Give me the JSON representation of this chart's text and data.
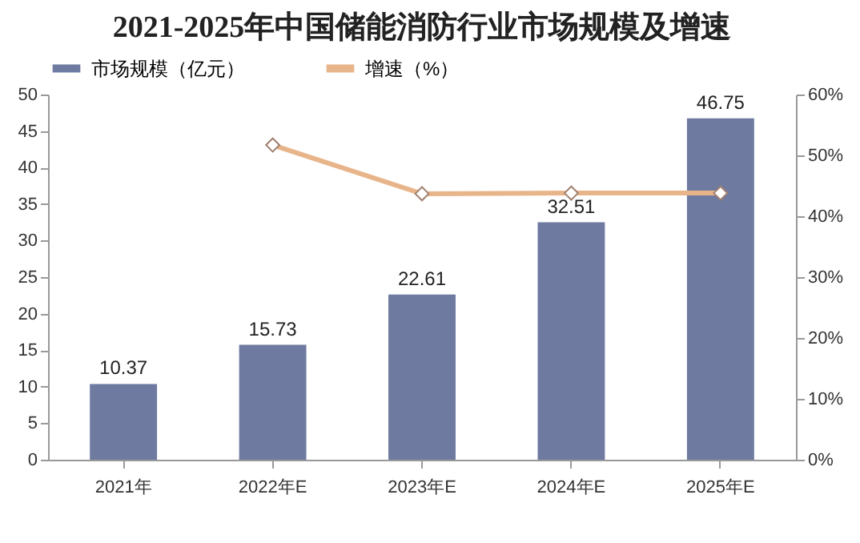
{
  "chart_data": {
    "type": "bar",
    "title": "2021-2025年中国储能消防行业市场规模及增速",
    "categories": [
      "2021年",
      "2022年E",
      "2023年E",
      "2024年E",
      "2025年E"
    ],
    "series": [
      {
        "name": "市场规模（亿元）",
        "color": "#6e7aa0",
        "values": [
          10.37,
          15.73,
          22.61,
          32.51,
          46.75
        ],
        "value_labels": [
          "10.37",
          "15.73",
          "22.61",
          "32.51",
          "46.75"
        ]
      },
      {
        "name": "增速（%）",
        "type": "line",
        "axis": "y2",
        "color": "#e8b48a",
        "marker": "diamond",
        "values": [
          null,
          51.7,
          43.7,
          43.8,
          43.8
        ]
      }
    ],
    "ylim": [
      0,
      50
    ],
    "yticks": [
      0,
      5,
      10,
      15,
      20,
      25,
      30,
      35,
      40,
      45,
      50
    ],
    "y2lim": [
      0,
      60
    ],
    "y2ticks": [
      {
        "value": 0,
        "label": "0%"
      },
      {
        "value": 10,
        "label": "10%"
      },
      {
        "value": 20,
        "label": "20%"
      },
      {
        "value": 30,
        "label": "30%"
      },
      {
        "value": 40,
        "label": "40%"
      },
      {
        "value": 50,
        "label": "50%"
      },
      {
        "value": 60,
        "label": "60%"
      }
    ],
    "legend": "top",
    "grid": false
  }
}
